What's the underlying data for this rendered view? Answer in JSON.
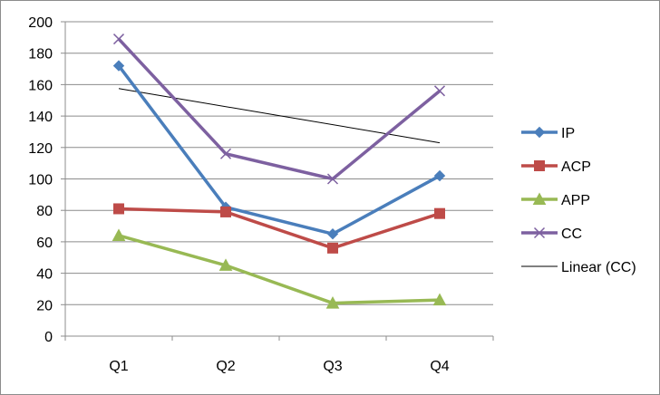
{
  "chart_data": {
    "type": "line",
    "title": "",
    "xlabel": "",
    "ylabel": "",
    "categories": [
      "Q1",
      "Q2",
      "Q3",
      "Q4"
    ],
    "ylim": [
      0,
      200
    ],
    "yticks": [
      0,
      20,
      40,
      60,
      80,
      100,
      120,
      140,
      160,
      180,
      200
    ],
    "grid": true,
    "legend_position": "right",
    "series": [
      {
        "name": "IP",
        "values": [
          172,
          82,
          65,
          102
        ],
        "color": "#4a7ebb",
        "marker": "diamond"
      },
      {
        "name": "ACP",
        "values": [
          81,
          79,
          56,
          78
        ],
        "color": "#be4b48",
        "marker": "square"
      },
      {
        "name": "APP",
        "values": [
          64,
          45,
          21,
          23
        ],
        "color": "#98b954",
        "marker": "triangle"
      },
      {
        "name": "CC",
        "values": [
          189,
          116,
          100,
          156
        ],
        "color": "#7d60a0",
        "marker": "x"
      }
    ],
    "trendline": {
      "name": "Linear (CC)",
      "of_series": "CC",
      "type": "linear",
      "color": "#000000"
    }
  }
}
